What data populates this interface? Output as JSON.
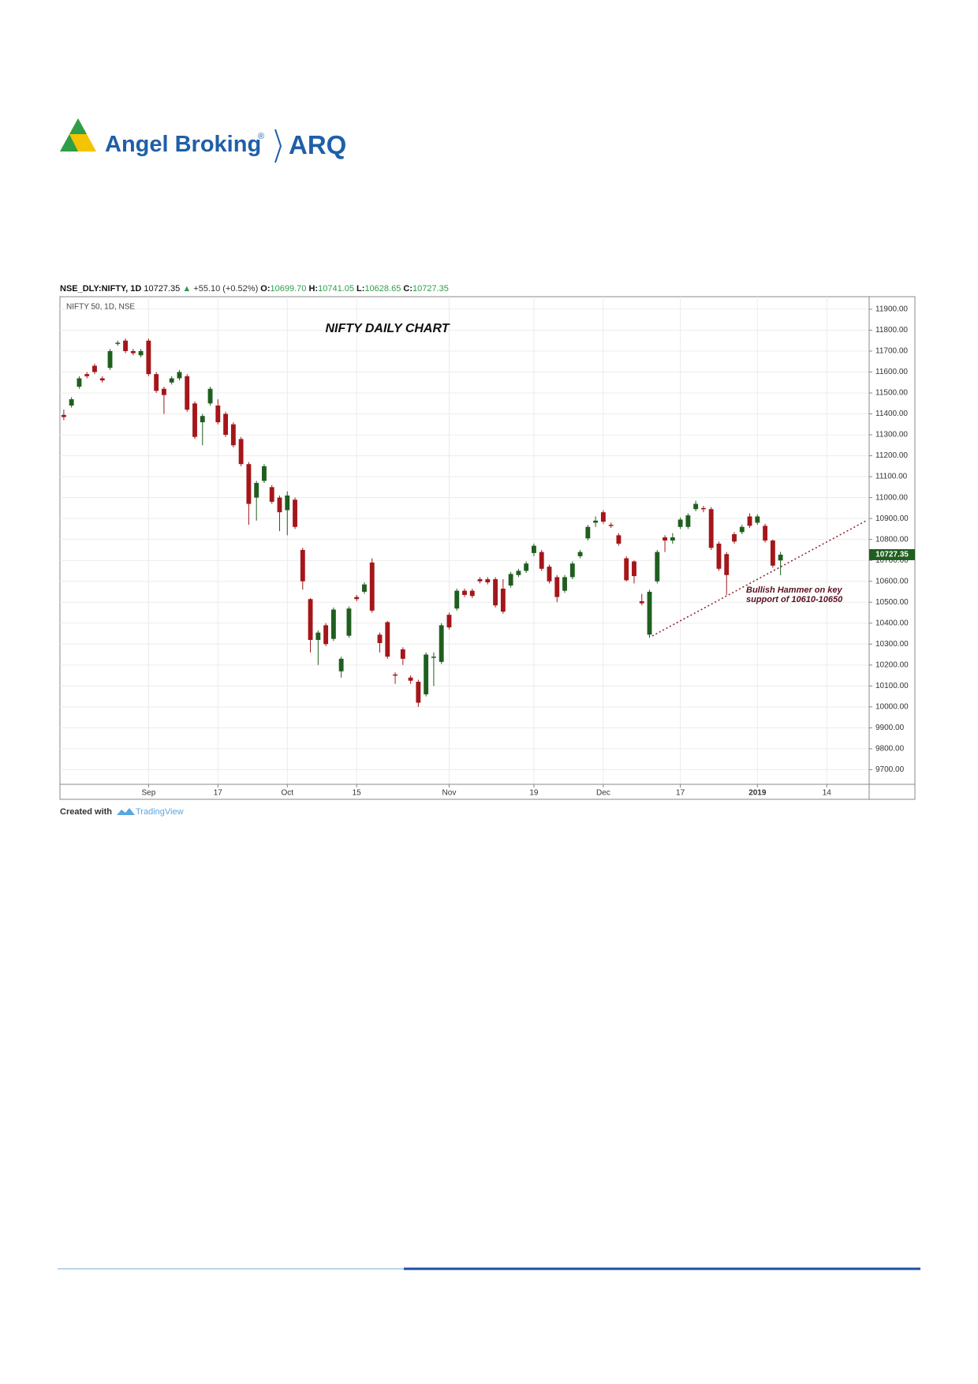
{
  "header": {
    "brand": "Angel Broking",
    "registered": "®",
    "product": "ARQ"
  },
  "quote_line": {
    "symbol": "NSE_DLY:NIFTY, 1D",
    "last": "10727.35",
    "change": "+55.10 (+0.52%)",
    "o_label": "O:",
    "o_value": "10699.70",
    "h_label": "H:",
    "h_value": "10741.05",
    "l_label": "L:",
    "l_value": "10628.65",
    "c_label": "C:",
    "c_value": "10727.35"
  },
  "chart_data": {
    "type": "candlestick",
    "subtitle": "NIFTY 50, 1D, NSE",
    "title": "NIFTY DAILY CHART",
    "annotation": [
      "Bullish Hammer on key",
      "support of 10610-10650"
    ],
    "up_color": "#1f5e1f",
    "down_color": "#a4161a",
    "grid": true,
    "ylim": [
      9630,
      11960
    ],
    "yticks": [
      {
        "value": 9700,
        "label": "9700.00"
      },
      {
        "value": 9800,
        "label": "9800.00"
      },
      {
        "value": 9900,
        "label": "9900.00"
      },
      {
        "value": 10000,
        "label": "10000.00"
      },
      {
        "value": 10100,
        "label": "10100.00"
      },
      {
        "value": 10200,
        "label": "10200.00"
      },
      {
        "value": 10300,
        "label": "10300.00"
      },
      {
        "value": 10400,
        "label": "10400.00"
      },
      {
        "value": 10500,
        "label": "10500.00"
      },
      {
        "value": 10600,
        "label": "10600.00"
      },
      {
        "value": 10700,
        "label": "10700.00"
      },
      {
        "value": 10800,
        "label": "10800.00"
      },
      {
        "value": 10900,
        "label": "10900.00"
      },
      {
        "value": 11000,
        "label": "11000.00"
      },
      {
        "value": 11100,
        "label": "11100.00"
      },
      {
        "value": 11200,
        "label": "11200.00"
      },
      {
        "value": 11300,
        "label": "11300.00"
      },
      {
        "value": 11400,
        "label": "11400.00"
      },
      {
        "value": 11500,
        "label": "11500.00"
      },
      {
        "value": 11600,
        "label": "11600.00"
      },
      {
        "value": 11700,
        "label": "11700.00"
      },
      {
        "value": 11800,
        "label": "11800.00"
      },
      {
        "value": 11900,
        "label": "11900.00"
      }
    ],
    "categories": [
      null,
      null,
      null,
      null,
      null,
      null,
      null,
      null,
      null,
      null,
      null,
      "Sep",
      null,
      null,
      null,
      null,
      null,
      null,
      null,
      null,
      "17",
      null,
      null,
      null,
      null,
      null,
      null,
      null,
      null,
      "Oct",
      null,
      null,
      null,
      null,
      null,
      null,
      null,
      null,
      "15",
      null,
      null,
      null,
      null,
      null,
      null,
      null,
      null,
      null,
      null,
      null,
      "Nov",
      null,
      null,
      null,
      null,
      null,
      null,
      null,
      null,
      null,
      null,
      "19",
      null,
      null,
      null,
      null,
      null,
      null,
      null,
      null,
      "Dec",
      null,
      null,
      null,
      null,
      null,
      null,
      null,
      null,
      null,
      "17",
      null,
      null,
      null,
      null,
      null,
      null,
      null,
      null,
      null,
      "2019",
      null,
      null,
      null,
      null,
      null,
      null,
      null,
      null,
      "14",
      null,
      null,
      null,
      null,
      null
    ],
    "open": [
      11395,
      11440,
      11530,
      11590,
      11630,
      11570,
      11620,
      11735,
      11750,
      11700,
      11680,
      11750,
      11590,
      11520,
      11550,
      11570,
      11580,
      11450,
      11360,
      11450,
      11440,
      11400,
      11350,
      11280,
      11160,
      11000,
      11080,
      11050,
      11000,
      10940,
      10990,
      10750,
      10515,
      10320,
      10390,
      10325,
      10170,
      10340,
      10525,
      10550,
      10690,
      10345,
      10405,
      10155,
      10275,
      10140,
      10120,
      10060,
      10235,
      10215,
      10440,
      10470,
      10555,
      10555,
      10610,
      10610,
      10610,
      10565,
      10580,
      10630,
      10650,
      10735,
      10740,
      10670,
      10620,
      10555,
      10620,
      10720,
      10805,
      10880,
      10930,
      10870,
      10820,
      10710,
      10695,
      10505,
      10345,
      10600,
      10810,
      10795,
      10860,
      10860,
      10945,
      10950,
      10945,
      10780,
      10730,
      10825,
      10835,
      10910,
      10880,
      10865,
      10795,
      10699.7,
      null,
      null,
      null,
      null,
      null,
      null,
      null,
      null,
      null,
      null,
      null
    ],
    "high": [
      11420,
      11480,
      11580,
      11600,
      11640,
      11580,
      11710,
      11750,
      11760,
      11710,
      11710,
      11760,
      11600,
      11530,
      11580,
      11610,
      11590,
      11460,
      11400,
      11530,
      11470,
      11410,
      11360,
      11290,
      11170,
      11080,
      11160,
      11060,
      11010,
      11030,
      11000,
      10760,
      10520,
      10365,
      10400,
      10475,
      10240,
      10480,
      10535,
      10595,
      10710,
      10355,
      10410,
      10165,
      10285,
      10150,
      10130,
      10260,
      10260,
      10400,
      10450,
      10565,
      10565,
      10565,
      10620,
      10620,
      10620,
      10610,
      10645,
      10660,
      10695,
      10780,
      10750,
      10680,
      10630,
      10630,
      10695,
      10750,
      10870,
      10910,
      10940,
      10880,
      10830,
      10720,
      10700,
      10540,
      10560,
      10750,
      10820,
      10830,
      10905,
      10925,
      10985,
      10960,
      10955,
      10790,
      10740,
      10835,
      10870,
      10925,
      10920,
      10875,
      10800,
      10741.05,
      null,
      null,
      null,
      null,
      null,
      null,
      null,
      null,
      null,
      null,
      null
    ],
    "low": [
      11370,
      11430,
      11520,
      11570,
      11590,
      11550,
      11610,
      11725,
      11690,
      11680,
      11670,
      11580,
      11500,
      11400,
      11540,
      11560,
      11410,
      11280,
      11250,
      11440,
      11350,
      11290,
      11240,
      11150,
      10870,
      10890,
      11070,
      10970,
      10840,
      10820,
      10850,
      10560,
      10260,
      10200,
      10290,
      10315,
      10140,
      10330,
      10505,
      10540,
      10450,
      10260,
      10230,
      10110,
      10200,
      10110,
      10000,
      10050,
      10100,
      10205,
      10370,
      10460,
      10525,
      10520,
      10590,
      10585,
      10475,
      10445,
      10570,
      10620,
      10640,
      10720,
      10650,
      10590,
      10500,
      10545,
      10610,
      10710,
      10795,
      10860,
      10875,
      10855,
      10770,
      10600,
      10590,
      10485,
      10330,
      10590,
      10740,
      10780,
      10850,
      10850,
      10935,
      10930,
      10750,
      10650,
      10535,
      10780,
      10825,
      10855,
      10870,
      10785,
      10665,
      10628.65,
      null,
      null,
      null,
      null,
      null,
      null,
      null,
      null,
      null,
      null,
      null
    ],
    "close": [
      11385,
      11470,
      11570,
      11580,
      11600,
      11560,
      11700,
      11740,
      11700,
      11690,
      11700,
      11590,
      11510,
      11490,
      11570,
      11600,
      11420,
      11290,
      11390,
      11520,
      11360,
      11300,
      11250,
      11160,
      10970,
      11070,
      11150,
      10980,
      10930,
      11010,
      10860,
      10600,
      10320,
      10355,
      10300,
      10465,
      10230,
      10470,
      10515,
      10585,
      10460,
      10305,
      10240,
      10150,
      10230,
      10125,
      10020,
      10250,
      10240,
      10390,
      10380,
      10555,
      10535,
      10530,
      10600,
      10595,
      10485,
      10455,
      10635,
      10650,
      10685,
      10770,
      10660,
      10600,
      10525,
      10620,
      10685,
      10740,
      10860,
      10890,
      10885,
      10865,
      10780,
      10605,
      10625,
      10495,
      10550,
      10740,
      10795,
      10810,
      10895,
      10915,
      10970,
      10945,
      10760,
      10660,
      10630,
      10790,
      10860,
      10865,
      10910,
      10795,
      10675,
      10727.35,
      null,
      null,
      null,
      null,
      null,
      null,
      null,
      null,
      null,
      null,
      null
    ]
  },
  "footer": {
    "created_with": "Created with",
    "brand": "TradingView"
  }
}
